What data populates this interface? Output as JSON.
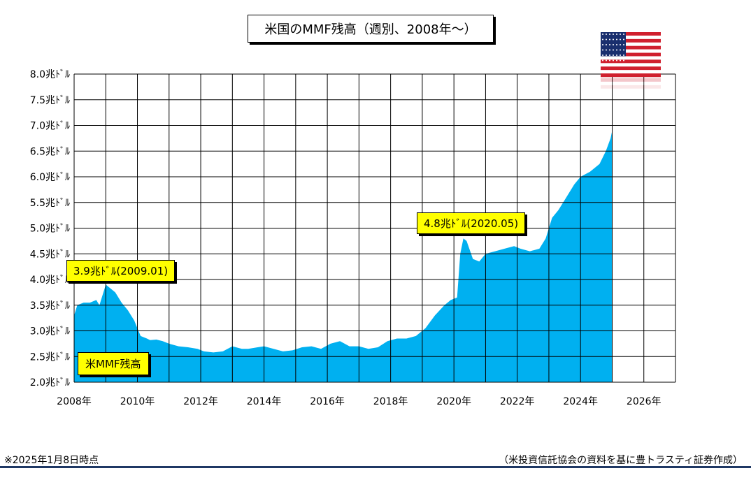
{
  "chart_data": {
    "type": "area",
    "title": "米国のMMF残高（週別、2008年～）",
    "xlim": [
      2008,
      2027
    ],
    "ylim": [
      2.0,
      8.0
    ],
    "x_ticks": [
      "2008年",
      "2010年",
      "2012年",
      "2014年",
      "2016年",
      "2018年",
      "2020年",
      "2022年",
      "2024年",
      "2026年"
    ],
    "y_ticks": [
      "2.0兆ﾄﾞﾙ",
      "2.5兆ﾄﾞﾙ",
      "3.0兆ﾄﾞﾙ",
      "3.5兆ﾄﾞﾙ",
      "4.0兆ﾄﾞﾙ",
      "4.5兆ﾄﾞﾙ",
      "5.0兆ﾄﾞﾙ",
      "5.5兆ﾄﾞﾙ",
      "6.0兆ﾄﾞﾙ",
      "6.5兆ﾄﾞﾙ",
      "7.0兆ﾄﾞﾙ",
      "7.5兆ﾄﾞﾙ",
      "8.0兆ﾄﾞﾙ"
    ],
    "grid": true,
    "series": [
      {
        "name": "米MMF残高",
        "color": "#00b0f0",
        "x": [
          2008.0,
          2008.1,
          2008.3,
          2008.5,
          2008.7,
          2008.8,
          2009.0,
          2009.1,
          2009.3,
          2009.5,
          2009.7,
          2009.9,
          2010.1,
          2010.3,
          2010.4,
          2010.6,
          2010.8,
          2011.0,
          2011.3,
          2011.6,
          2011.9,
          2012.1,
          2012.4,
          2012.7,
          2013.0,
          2013.3,
          2013.5,
          2013.8,
          2014.0,
          2014.3,
          2014.6,
          2014.9,
          2015.2,
          2015.5,
          2015.8,
          2016.1,
          2016.4,
          2016.7,
          2017.0,
          2017.3,
          2017.6,
          2017.9,
          2018.2,
          2018.5,
          2018.8,
          2019.1,
          2019.4,
          2019.7,
          2019.9,
          2020.1,
          2020.2,
          2020.3,
          2020.4,
          2020.6,
          2020.8,
          2021.0,
          2021.3,
          2021.6,
          2021.9,
          2022.1,
          2022.4,
          2022.7,
          2022.9,
          2023.1,
          2023.3,
          2023.5,
          2023.8,
          2024.0,
          2024.3,
          2024.6,
          2024.8,
          2024.95,
          2025.0
        ],
        "values": [
          3.3,
          3.5,
          3.55,
          3.55,
          3.6,
          3.5,
          3.9,
          3.85,
          3.75,
          3.55,
          3.4,
          3.2,
          2.9,
          2.85,
          2.82,
          2.83,
          2.8,
          2.75,
          2.7,
          2.68,
          2.65,
          2.6,
          2.58,
          2.6,
          2.7,
          2.65,
          2.65,
          2.68,
          2.7,
          2.65,
          2.6,
          2.62,
          2.68,
          2.7,
          2.65,
          2.75,
          2.8,
          2.7,
          2.7,
          2.65,
          2.68,
          2.8,
          2.85,
          2.85,
          2.9,
          3.05,
          3.3,
          3.5,
          3.6,
          3.65,
          4.5,
          4.8,
          4.75,
          4.4,
          4.35,
          4.5,
          4.55,
          4.6,
          4.65,
          4.6,
          4.55,
          4.6,
          4.8,
          5.2,
          5.35,
          5.55,
          5.85,
          6.0,
          6.1,
          6.25,
          6.5,
          6.75,
          6.9
        ]
      }
    ],
    "annotations": [
      {
        "text": "3.9兆ﾄﾞﾙ(2009.01)"
      },
      {
        "text": "4.8兆ﾄﾞﾙ(2020.05)"
      }
    ]
  },
  "footer": {
    "note": "※2025年1月8日時点",
    "source": "（米投資信託協会の資料を基に豊トラスティ証券作成）"
  },
  "flag": {
    "icon": "us-flag-icon"
  }
}
